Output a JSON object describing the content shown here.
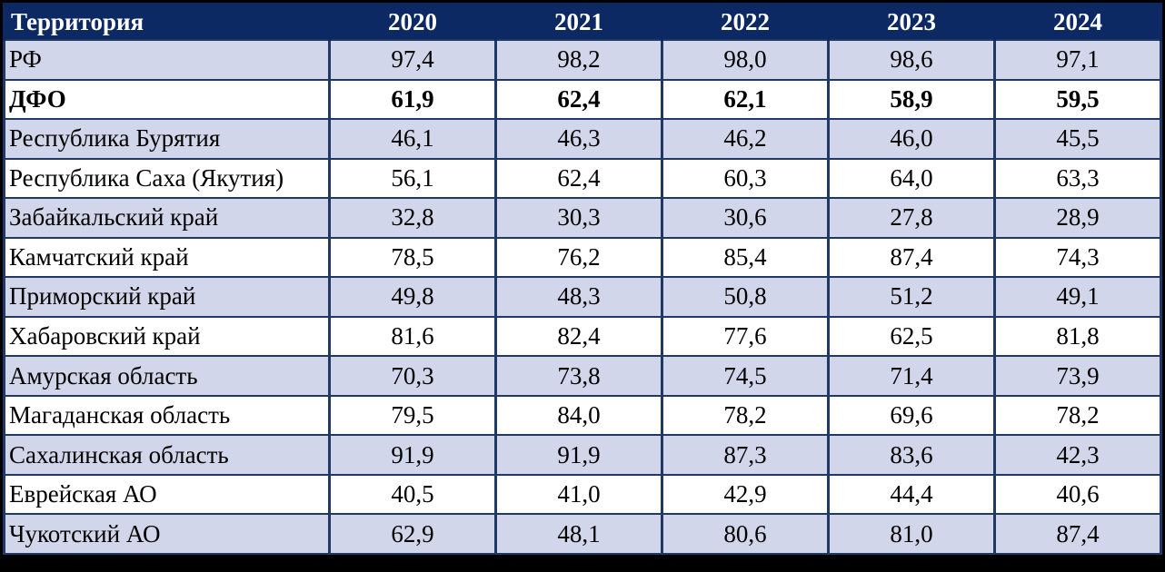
{
  "chart_data": {
    "type": "table",
    "columns": [
      "Территория",
      "2020",
      "2021",
      "2022",
      "2023",
      "2024"
    ],
    "rows": [
      {
        "territory": "РФ",
        "values": [
          "97,4",
          "98,2",
          "98,0",
          "98,6",
          "97,1"
        ],
        "bold": false,
        "shaded": true
      },
      {
        "territory": "ДФО",
        "values": [
          "61,9",
          "62,4",
          "62,1",
          "58,9",
          "59,5"
        ],
        "bold": true,
        "shaded": false
      },
      {
        "territory": "Республика Бурятия",
        "values": [
          "46,1",
          "46,3",
          "46,2",
          "46,0",
          "45,5"
        ],
        "bold": false,
        "shaded": true
      },
      {
        "territory": "Республика Саха (Якутия)",
        "values": [
          "56,1",
          "62,4",
          "60,3",
          "64,0",
          "63,3"
        ],
        "bold": false,
        "shaded": false
      },
      {
        "territory": "Забайкальский край",
        "values": [
          "32,8",
          "30,3",
          "30,6",
          "27,8",
          "28,9"
        ],
        "bold": false,
        "shaded": true
      },
      {
        "territory": "Камчатский край",
        "values": [
          "78,5",
          "76,2",
          "85,4",
          "87,4",
          "74,3"
        ],
        "bold": false,
        "shaded": false
      },
      {
        "territory": "Приморский край",
        "values": [
          "49,8",
          "48,3",
          "50,8",
          "51,2",
          "49,1"
        ],
        "bold": false,
        "shaded": true
      },
      {
        "territory": "Хабаровский край",
        "values": [
          "81,6",
          "82,4",
          "77,6",
          "62,5",
          "81,8"
        ],
        "bold": false,
        "shaded": false
      },
      {
        "territory": "Амурская область",
        "values": [
          "70,3",
          "73,8",
          "74,5",
          "71,4",
          "73,9"
        ],
        "bold": false,
        "shaded": true
      },
      {
        "territory": "Магаданская область",
        "values": [
          "79,5",
          "84,0",
          "78,2",
          "69,6",
          "78,2"
        ],
        "bold": false,
        "shaded": false
      },
      {
        "territory": "Сахалинская область",
        "values": [
          "91,9",
          "91,9",
          "87,3",
          "83,6",
          "42,3"
        ],
        "bold": false,
        "shaded": true
      },
      {
        "territory": "Еврейская АО",
        "values": [
          "40,5",
          "41,0",
          "42,9",
          "44,4",
          "40,6"
        ],
        "bold": false,
        "shaded": false
      },
      {
        "territory": "Чукотский АО",
        "values": [
          "62,9",
          "48,1",
          "80,6",
          "81,0",
          "87,4"
        ],
        "bold": false,
        "shaded": true
      }
    ]
  },
  "colors": {
    "header_bg": "#0d2963",
    "header_text": "#ffffff",
    "shaded_row_bg": "#d1d6ea",
    "plain_row_bg": "#ffffff",
    "border": "#1f3864",
    "frame": "#000000",
    "cell_text": "#000000"
  }
}
